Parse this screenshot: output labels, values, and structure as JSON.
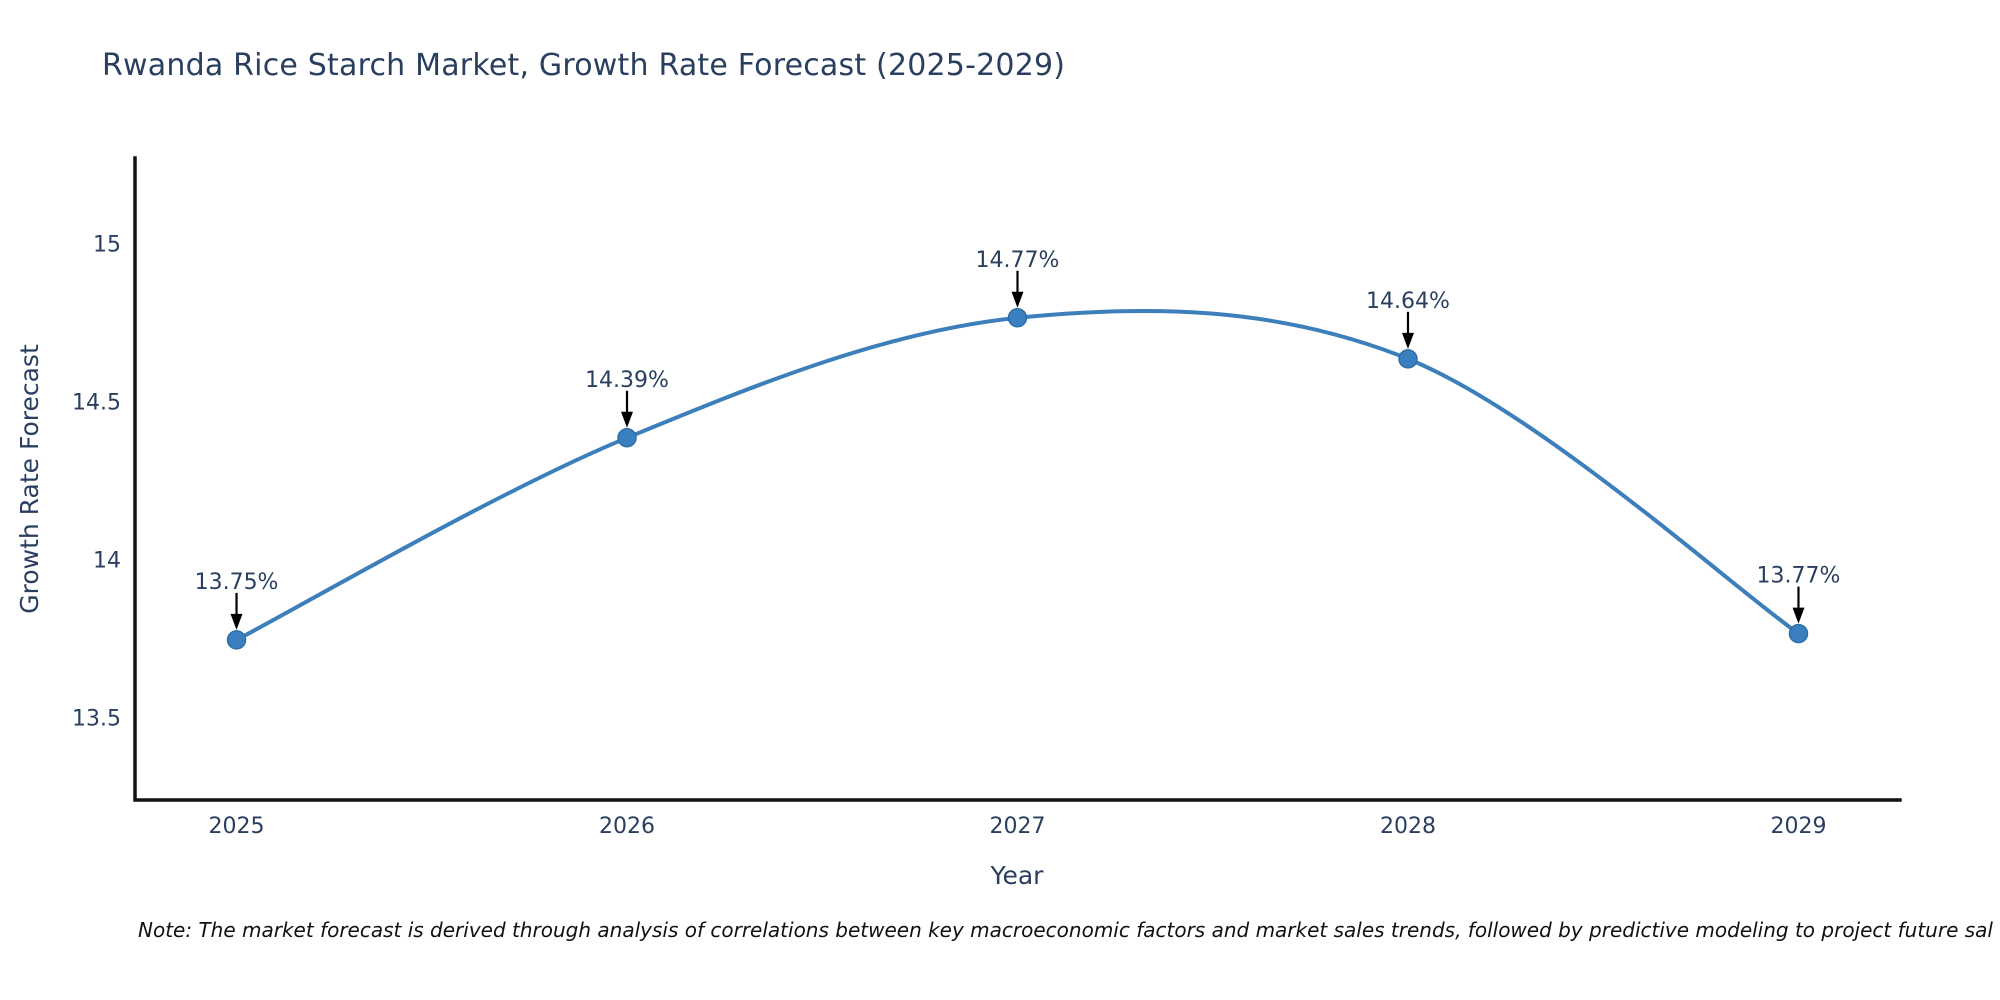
{
  "page": {
    "title": "Rwanda Rice Starch Market, Growth Rate Forecast (2025-2029)",
    "note": "Note: The market forecast is derived through analysis of correlations between key macroeconomic factors and market sales trends, followed by predictive modeling to project future sal"
  },
  "chart_data": {
    "type": "line",
    "title": "Rwanda Rice Starch Market, Growth Rate Forecast (2025-2029)",
    "xlabel": "Year",
    "ylabel": "Growth Rate Forecast",
    "x": [
      2025,
      2026,
      2027,
      2028,
      2029
    ],
    "values": [
      13.75,
      14.39,
      14.77,
      14.64,
      13.77
    ],
    "point_labels": [
      "13.75%",
      "14.39%",
      "14.77%",
      "14.64%",
      "13.77%"
    ],
    "xticks": [
      2025,
      2026,
      2027,
      2028,
      2029
    ],
    "xtick_labels": [
      "2025",
      "2026",
      "2027",
      "2028",
      "2029"
    ],
    "yticks": [
      13.5,
      14,
      14.5,
      15
    ],
    "ytick_labels": [
      "13.5",
      "14",
      "14.5",
      "15"
    ],
    "xlim": [
      2024.74,
      2029.26
    ],
    "ylim": [
      13.243,
      15.276
    ],
    "grid": false,
    "legend": "none",
    "line_shape": "spline",
    "marker": "circle",
    "annotation_arrows": true,
    "colors": {
      "line": "#3d7fba",
      "marker_fill": "#3a80c0",
      "marker_stroke": "#2d6fa8",
      "axis_line": "#111111",
      "tick_text": "#2a3f5f",
      "title_text": "#2a3f5f",
      "annotation_text": "#2a3f5f",
      "arrow": "#000000",
      "note_text": "#111111",
      "background": "#ffffff"
    }
  }
}
